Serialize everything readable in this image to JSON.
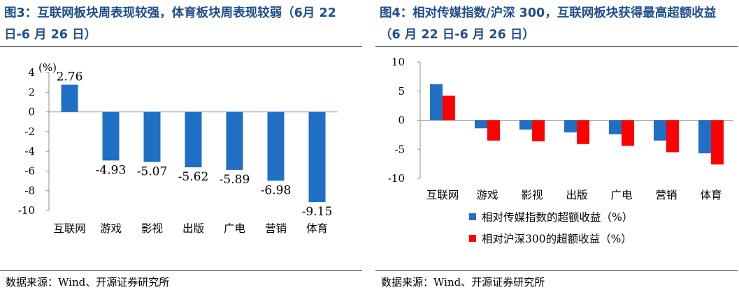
{
  "left": {
    "title": "图3：互联网板块周表现较强，体育板块周表现较弱（6月 22 日-6 月 26 日）",
    "source": "数据来源：Wind、开源证券研究所",
    "chart_data": {
      "type": "bar",
      "ylabel": "(%)",
      "ylim": [
        -10,
        4
      ],
      "yticks": [
        4,
        2,
        0,
        -2,
        -4,
        -6,
        -8,
        -10
      ],
      "categories": [
        "互联网",
        "游戏",
        "影视",
        "出版",
        "广电",
        "营销",
        "体育"
      ],
      "values": [
        2.76,
        -4.93,
        -5.07,
        -5.62,
        -5.89,
        -6.98,
        -9.15
      ],
      "value_labels": [
        "2.76",
        "-4.93",
        "-5.07",
        "-5.62",
        "-5.89",
        "-6.98",
        "-9.15"
      ],
      "color": "#1f6fc5",
      "grid": false
    }
  },
  "right": {
    "title": "图4：相对传媒指数/沪深 300，互联网板块获得最高超额收益（6 月 22 日-6 月 26 日）",
    "source": "数据来源：Wind、开源证券研究所",
    "chart_data": {
      "type": "bar",
      "ylim": [
        -10,
        10
      ],
      "yticks": [
        10,
        5,
        0,
        -5,
        -10
      ],
      "categories": [
        "互联网",
        "游戏",
        "影视",
        "出版",
        "广电",
        "营销",
        "体育"
      ],
      "series": [
        {
          "name": "相对传媒指数的超额收益（%）",
          "color": "#1f6fc5",
          "values": [
            6.2,
            -1.4,
            -1.6,
            -2.1,
            -2.4,
            -3.5,
            -5.7
          ]
        },
        {
          "name": "相对沪深300的超额收益（%）",
          "color": "#ff0000",
          "values": [
            4.2,
            -3.5,
            -3.6,
            -4.1,
            -4.4,
            -5.5,
            -7.6
          ]
        }
      ],
      "legend": "bottom",
      "grid": false
    }
  }
}
